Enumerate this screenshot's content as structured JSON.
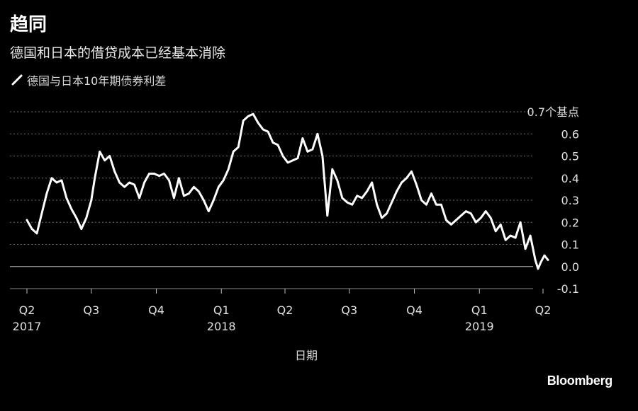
{
  "chart_data": {
    "type": "line",
    "title": "趋同",
    "subtitle": "德国和日本的借贷成本已经基本消除",
    "legend": {
      "placement": "top-left",
      "entries": [
        "德国与日本10年期债券利差"
      ]
    },
    "xlabel": "日期",
    "ylabel": "",
    "y_unit_label": "0.7个基点",
    "ylim": [
      -0.1,
      0.7
    ],
    "y_ticks": [
      {
        "value": 0.7,
        "label": "0.7个基点"
      },
      {
        "value": 0.6,
        "label": "0.6"
      },
      {
        "value": 0.5,
        "label": "0.5"
      },
      {
        "value": 0.4,
        "label": "0.4"
      },
      {
        "value": 0.3,
        "label": "0.3"
      },
      {
        "value": 0.2,
        "label": "0.2"
      },
      {
        "value": 0.1,
        "label": "0.1"
      },
      {
        "value": 0.0,
        "label": "0.0"
      },
      {
        "value": -0.1,
        "label": "-0.1"
      }
    ],
    "x_ticks": [
      {
        "value": "2017-04-01",
        "label": "Q2",
        "year": "2017"
      },
      {
        "value": "2017-07-01",
        "label": "Q3",
        "year": ""
      },
      {
        "value": "2017-10-01",
        "label": "Q4",
        "year": ""
      },
      {
        "value": "2018-01-01",
        "label": "Q1",
        "year": "2018"
      },
      {
        "value": "2018-04-01",
        "label": "Q2",
        "year": ""
      },
      {
        "value": "2018-07-01",
        "label": "Q3",
        "year": ""
      },
      {
        "value": "2018-10-01",
        "label": "Q4",
        "year": ""
      },
      {
        "value": "2019-01-01",
        "label": "Q1",
        "year": "2019"
      },
      {
        "value": "2019-04-01",
        "label": "Q2",
        "year": ""
      }
    ],
    "xlim": [
      "2017-04-01",
      "2019-04-10"
    ],
    "grid": true,
    "zero_line": true,
    "series": [
      {
        "name": "德国与日本10年期债券利差",
        "color": "#ffffff",
        "points": [
          [
            "2017-04-01",
            0.21
          ],
          [
            "2017-04-08",
            0.17
          ],
          [
            "2017-04-15",
            0.15
          ],
          [
            "2017-04-22",
            0.24
          ],
          [
            "2017-04-29",
            0.33
          ],
          [
            "2017-05-06",
            0.4
          ],
          [
            "2017-05-13",
            0.38
          ],
          [
            "2017-05-20",
            0.39
          ],
          [
            "2017-05-27",
            0.31
          ],
          [
            "2017-06-03",
            0.26
          ],
          [
            "2017-06-10",
            0.22
          ],
          [
            "2017-06-17",
            0.17
          ],
          [
            "2017-06-24",
            0.22
          ],
          [
            "2017-07-01",
            0.3
          ],
          [
            "2017-07-06",
            0.4
          ],
          [
            "2017-07-13",
            0.52
          ],
          [
            "2017-07-20",
            0.48
          ],
          [
            "2017-07-27",
            0.5
          ],
          [
            "2017-08-03",
            0.43
          ],
          [
            "2017-08-10",
            0.38
          ],
          [
            "2017-08-17",
            0.36
          ],
          [
            "2017-08-24",
            0.38
          ],
          [
            "2017-08-31",
            0.37
          ],
          [
            "2017-09-07",
            0.31
          ],
          [
            "2017-09-14",
            0.38
          ],
          [
            "2017-09-21",
            0.42
          ],
          [
            "2017-09-28",
            0.42
          ],
          [
            "2017-10-05",
            0.41
          ],
          [
            "2017-10-12",
            0.42
          ],
          [
            "2017-10-19",
            0.39
          ],
          [
            "2017-10-26",
            0.31
          ],
          [
            "2017-11-02",
            0.4
          ],
          [
            "2017-11-09",
            0.32
          ],
          [
            "2017-11-16",
            0.33
          ],
          [
            "2017-11-23",
            0.36
          ],
          [
            "2017-11-30",
            0.34
          ],
          [
            "2017-12-07",
            0.3
          ],
          [
            "2017-12-14",
            0.25
          ],
          [
            "2017-12-21",
            0.3
          ],
          [
            "2017-12-28",
            0.36
          ],
          [
            "2018-01-04",
            0.39
          ],
          [
            "2018-01-11",
            0.44
          ],
          [
            "2018-01-18",
            0.52
          ],
          [
            "2018-01-25",
            0.54
          ],
          [
            "2018-02-01",
            0.66
          ],
          [
            "2018-02-08",
            0.68
          ],
          [
            "2018-02-15",
            0.69
          ],
          [
            "2018-02-22",
            0.65
          ],
          [
            "2018-03-01",
            0.62
          ],
          [
            "2018-03-08",
            0.61
          ],
          [
            "2018-03-15",
            0.56
          ],
          [
            "2018-03-22",
            0.55
          ],
          [
            "2018-03-29",
            0.5
          ],
          [
            "2018-04-05",
            0.47
          ],
          [
            "2018-04-12",
            0.48
          ],
          [
            "2018-04-19",
            0.49
          ],
          [
            "2018-04-26",
            0.58
          ],
          [
            "2018-05-03",
            0.52
          ],
          [
            "2018-05-10",
            0.53
          ],
          [
            "2018-05-17",
            0.6
          ],
          [
            "2018-05-24",
            0.5
          ],
          [
            "2018-05-31",
            0.23
          ],
          [
            "2018-06-07",
            0.44
          ],
          [
            "2018-06-14",
            0.39
          ],
          [
            "2018-06-21",
            0.31
          ],
          [
            "2018-06-28",
            0.29
          ],
          [
            "2018-07-05",
            0.28
          ],
          [
            "2018-07-12",
            0.32
          ],
          [
            "2018-07-19",
            0.31
          ],
          [
            "2018-07-26",
            0.34
          ],
          [
            "2018-08-02",
            0.38
          ],
          [
            "2018-08-09",
            0.28
          ],
          [
            "2018-08-16",
            0.22
          ],
          [
            "2018-08-23",
            0.24
          ],
          [
            "2018-08-30",
            0.29
          ],
          [
            "2018-09-06",
            0.34
          ],
          [
            "2018-09-13",
            0.38
          ],
          [
            "2018-09-20",
            0.4
          ],
          [
            "2018-09-27",
            0.43
          ],
          [
            "2018-10-04",
            0.37
          ],
          [
            "2018-10-11",
            0.3
          ],
          [
            "2018-10-18",
            0.28
          ],
          [
            "2018-10-25",
            0.33
          ],
          [
            "2018-11-01",
            0.28
          ],
          [
            "2018-11-08",
            0.28
          ],
          [
            "2018-11-15",
            0.21
          ],
          [
            "2018-11-22",
            0.19
          ],
          [
            "2018-11-29",
            0.21
          ],
          [
            "2018-12-06",
            0.23
          ],
          [
            "2018-12-13",
            0.25
          ],
          [
            "2018-12-20",
            0.24
          ],
          [
            "2018-12-27",
            0.2
          ],
          [
            "2019-01-03",
            0.22
          ],
          [
            "2019-01-10",
            0.25
          ],
          [
            "2019-01-17",
            0.22
          ],
          [
            "2019-01-24",
            0.16
          ],
          [
            "2019-01-31",
            0.19
          ],
          [
            "2019-02-07",
            0.12
          ],
          [
            "2019-02-14",
            0.14
          ],
          [
            "2019-02-21",
            0.13
          ],
          [
            "2019-02-28",
            0.2
          ],
          [
            "2019-03-07",
            0.08
          ],
          [
            "2019-03-14",
            0.14
          ],
          [
            "2019-03-21",
            0.03
          ],
          [
            "2019-03-25",
            -0.01
          ],
          [
            "2019-03-29",
            0.02
          ],
          [
            "2019-04-03",
            0.05
          ],
          [
            "2019-04-08",
            0.03
          ]
        ]
      }
    ]
  },
  "brand": "Bloomberg",
  "colors": {
    "background": "#000000",
    "text": "#ffffff",
    "grid": "#6e6e6e",
    "zero_line": "#a0a0a0"
  }
}
